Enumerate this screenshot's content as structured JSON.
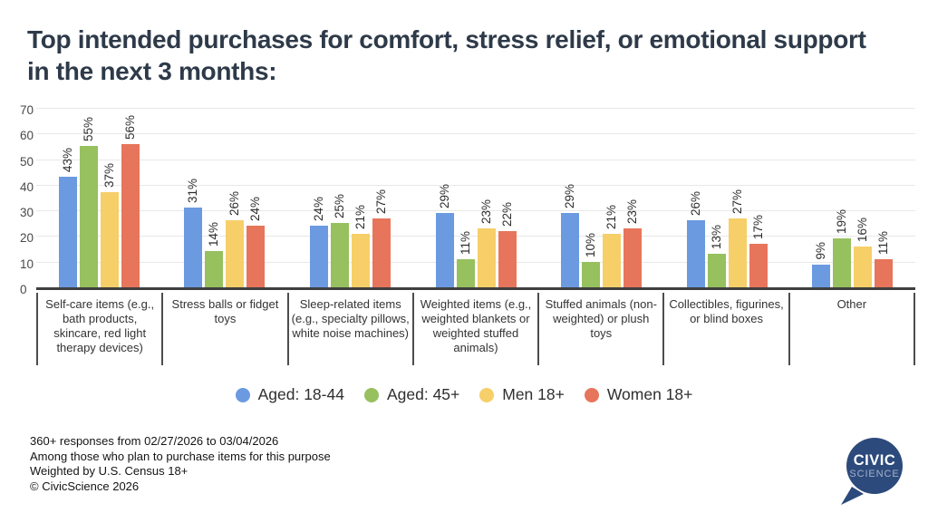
{
  "header": {
    "title_lines": [
      "Top intended purchases for comfort, stress relief, or emotional support",
      "in the next 3 months:"
    ]
  },
  "chart_data": {
    "type": "bar",
    "title": "Top intended purchases for comfort, stress relief, or emotional support in the next 3 months:",
    "categories": [
      "Self-care items (e.g., bath products, skincare, red light therapy devices)",
      "Stress balls or fidget toys",
      "Sleep-related items (e.g., specialty pillows, white noise machines)",
      "Weighted items (e.g., weighted blankets or weighted stuffed animals)",
      "Stuffed animals (non-weighted) or plush toys",
      "Collectibles, figurines, or blind boxes",
      "Other"
    ],
    "series": [
      {
        "name": "Aged: 18-44",
        "color": "#6b9ae1",
        "values": [
          43,
          31,
          24,
          29,
          29,
          26,
          9
        ]
      },
      {
        "name": "Aged: 45+",
        "color": "#97c05f",
        "values": [
          55,
          14,
          25,
          11,
          10,
          13,
          19
        ]
      },
      {
        "name": "Men 18+",
        "color": "#f6cf69",
        "values": [
          37,
          26,
          21,
          23,
          21,
          27,
          16
        ]
      },
      {
        "name": "Women 18+",
        "color": "#e6755b",
        "values": [
          56,
          24,
          27,
          22,
          23,
          17,
          11
        ]
      }
    ],
    "ylim": [
      0,
      70
    ],
    "yticks": [
      0,
      10,
      20,
      30,
      40,
      50,
      60,
      70
    ],
    "value_suffix": "%",
    "grid": true,
    "legend_position": "bottom"
  },
  "footer": {
    "lines": [
      "360+ responses from 02/27/2026 to 03/04/2026",
      "Among those who plan to purchase items for this purpose",
      "Weighted by U.S. Census 18+",
      "© CivicScience 2026"
    ]
  },
  "logo": {
    "line1": "CIVIC",
    "line2": "SCIENCE",
    "bubble_color": "#2d4a7c"
  }
}
